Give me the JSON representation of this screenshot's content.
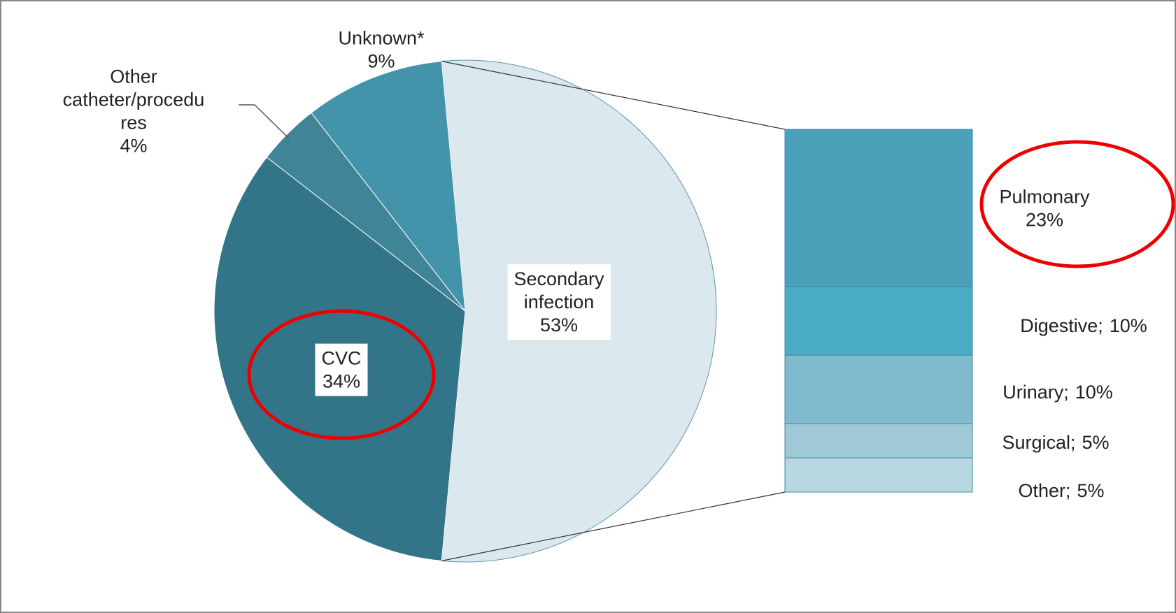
{
  "chart_data": {
    "type": "pie-of-bar",
    "pie": {
      "categories": [
        "Secondary infection",
        "CVC",
        "Other catheter/procedures",
        "Unknown*"
      ],
      "values": [
        53,
        34,
        4,
        9
      ],
      "value_labels": [
        "53%",
        "34%",
        "4%",
        "9%"
      ],
      "colors": [
        "#dbe8ee",
        "#337588",
        "#3f8497",
        "#4394ab"
      ]
    },
    "bar": {
      "categories": [
        "Pulmonary",
        "Digestive;",
        "Urinary;",
        "Surgical;",
        "Other;"
      ],
      "values": [
        23,
        10,
        10,
        5,
        5
      ],
      "value_labels": [
        "23%",
        "10%",
        "10%",
        "5%",
        "5%"
      ],
      "colors": [
        "#4aa1b9",
        "#4bacc6",
        "#7fbacd",
        "#a0c9d7",
        "#b9d7e0"
      ]
    }
  }
}
